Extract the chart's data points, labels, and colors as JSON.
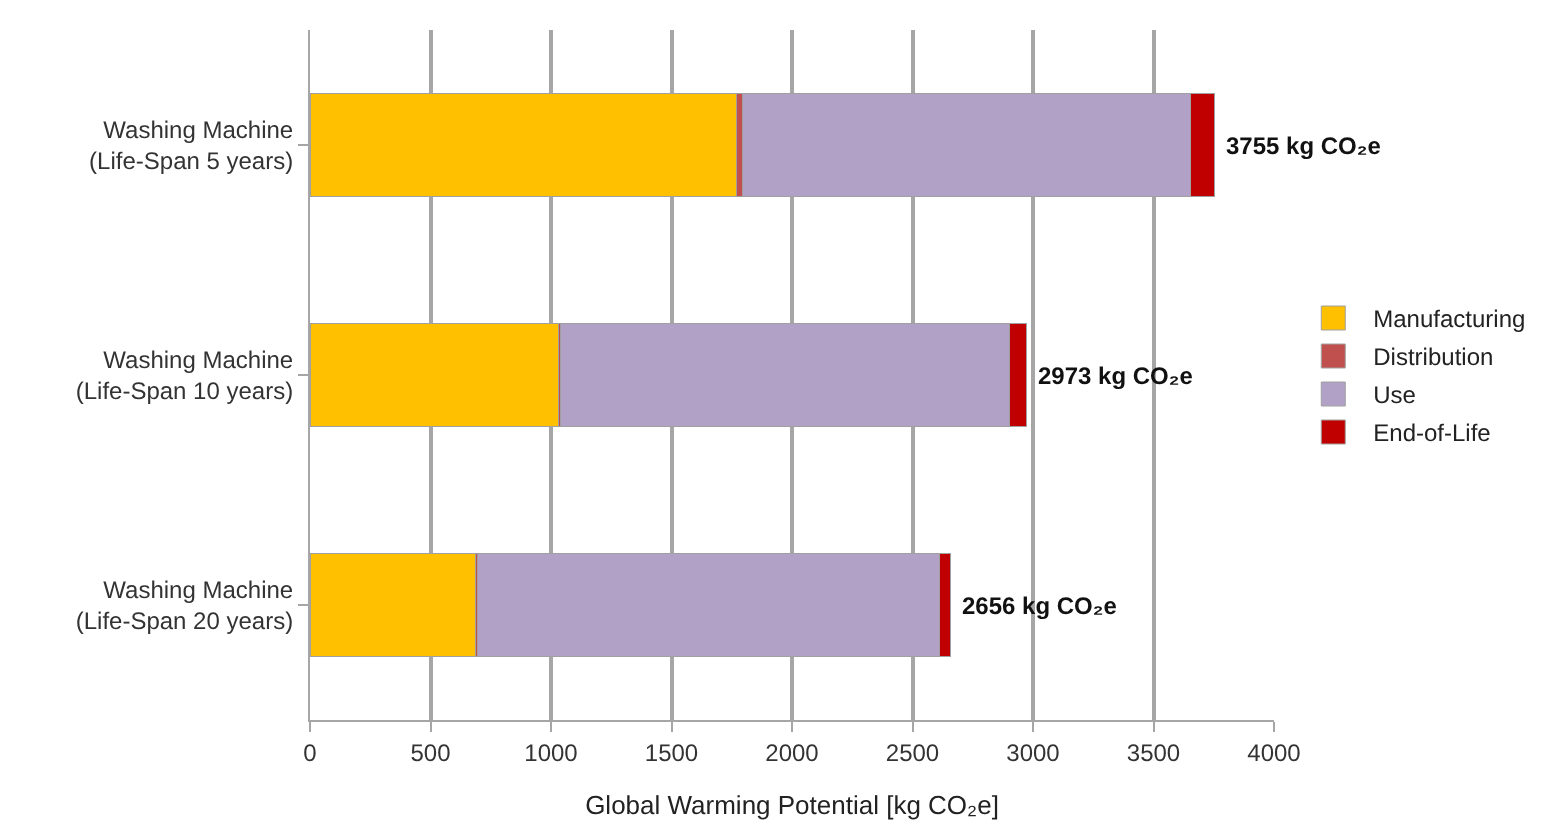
{
  "chart_data": {
    "type": "bar",
    "orientation": "horizontal",
    "stacked": true,
    "categories": [
      "Washing Machine\n(Life-Span 5 years)",
      "Washing Machine\n(Life-Span 10 years)",
      "Washing Machine\n(Life-Span 20 years)"
    ],
    "series": [
      {
        "name": "Manufacturing",
        "color": "#ffc000",
        "values": [
          1770,
          1030,
          685
        ]
      },
      {
        "name": "Distribution",
        "color": "#c0504d",
        "values": [
          25,
          10,
          10
        ]
      },
      {
        "name": "Use",
        "color": "#b2a1c7",
        "values": [
          1860,
          1863,
          1916
        ]
      },
      {
        "name": "End-of-Life",
        "color": "#c00000",
        "values": [
          100,
          70,
          45
        ]
      }
    ],
    "xlabel": "Global Warming Potential [kg CO₂e]",
    "xlim": [
      0,
      4000
    ],
    "xticks": [
      0,
      500,
      1000,
      1500,
      2000,
      2500,
      3000,
      3500,
      4000
    ],
    "grid": "x",
    "legend": "right",
    "annotations": [
      {
        "text": "3755 kg CO₂e",
        "x": 3755,
        "y": "Washing Machine\n(Life-Span 5 years)"
      },
      {
        "text": "2973 kg CO₂e",
        "x": 2973,
        "y": "Washing Machine\n(Life-Span 10 years)"
      },
      {
        "text": "2656 kg CO₂e",
        "x": 2656,
        "y": "Washing Machine\n(Life-Span 20 years)"
      }
    ]
  }
}
